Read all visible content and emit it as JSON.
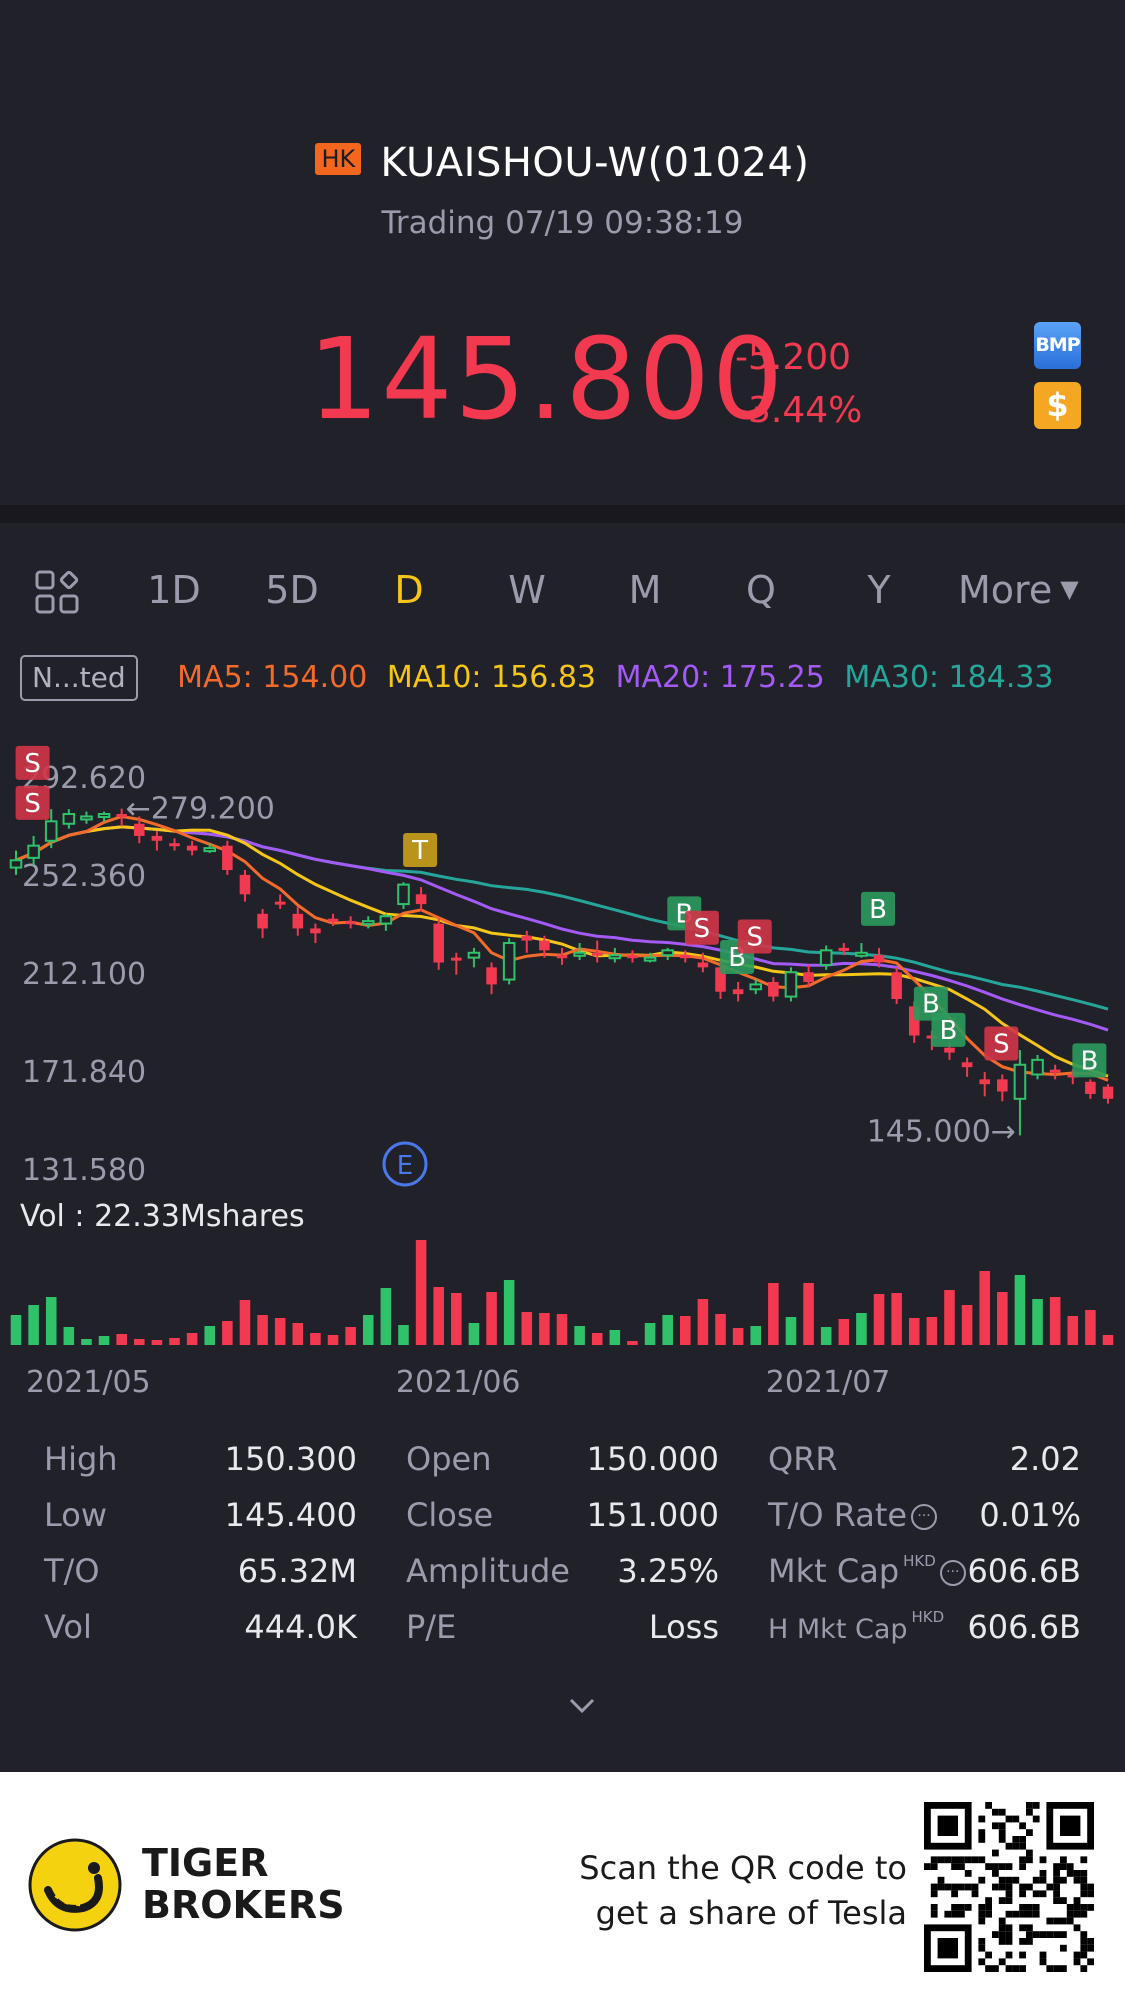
{
  "header": {
    "market_badge": "HK",
    "stock_name": "KUAISHOU-W(01024)",
    "status": "Trading 07/19 09:38:19",
    "price": "145.800",
    "change": "-5.200",
    "change_pct": "-3.44%",
    "icons": [
      "bmp-icon",
      "dollar-icon"
    ]
  },
  "tabs": {
    "items": [
      "1D",
      "5D",
      "D",
      "W",
      "M",
      "Q",
      "Y"
    ],
    "active": "D",
    "more_label": "More"
  },
  "ma": {
    "adjust_label": "N...ted",
    "ma5": "MA5: 154.00",
    "ma10": "MA10: 156.83",
    "ma20": "MA20: 175.25",
    "ma30": "MA30: 184.33"
  },
  "colors": {
    "up": "#2fc26b",
    "down": "#f2394f",
    "ma5": "#f26b2b",
    "ma10": "#f5c518",
    "ma20": "#a45af7",
    "ma30": "#26a69a",
    "active_tab": "#f5c518"
  },
  "chart_data": {
    "type": "candlestick",
    "y_tick_labels": [
      "292.620",
      "252.360",
      "212.100",
      "171.840",
      "131.580"
    ],
    "ylim": [
      131.58,
      292.62
    ],
    "x_tick_labels": [
      "2021/05",
      "2021/06",
      "2021/07"
    ],
    "high_marker": "279.200",
    "low_marker": "145.000",
    "volume_label": "Vol  : 22.33Mshares",
    "event_marker": "E",
    "trade_markers": [
      "S",
      "S",
      "T",
      "B",
      "S",
      "B",
      "S",
      "B",
      "B",
      "B",
      "S",
      "B"
    ],
    "candles": [
      {
        "o": 255,
        "c": 258,
        "h": 262,
        "l": 252
      },
      {
        "o": 259,
        "c": 264,
        "h": 268,
        "l": 256
      },
      {
        "o": 266,
        "c": 274,
        "h": 279,
        "l": 263
      },
      {
        "o": 273,
        "c": 277,
        "h": 279,
        "l": 271
      },
      {
        "o": 275,
        "c": 276,
        "h": 278,
        "l": 273
      },
      {
        "o": 276,
        "c": 277,
        "h": 278,
        "l": 274
      },
      {
        "o": 277,
        "c": 276,
        "h": 279.2,
        "l": 272
      },
      {
        "o": 273,
        "c": 268,
        "h": 276,
        "l": 265
      },
      {
        "o": 268,
        "c": 266,
        "h": 270,
        "l": 262
      },
      {
        "o": 265,
        "c": 264,
        "h": 267,
        "l": 262
      },
      {
        "o": 264,
        "c": 262,
        "h": 266,
        "l": 260
      },
      {
        "o": 262,
        "c": 263,
        "h": 265,
        "l": 261
      },
      {
        "o": 264,
        "c": 254,
        "h": 266,
        "l": 252
      },
      {
        "o": 252,
        "c": 244,
        "h": 254,
        "l": 241
      },
      {
        "o": 236,
        "c": 230,
        "h": 238,
        "l": 226
      },
      {
        "o": 241,
        "c": 240,
        "h": 244,
        "l": 238
      },
      {
        "o": 236,
        "c": 230,
        "h": 239,
        "l": 227
      },
      {
        "o": 230,
        "c": 228,
        "h": 232,
        "l": 224
      },
      {
        "o": 234,
        "c": 233,
        "h": 236,
        "l": 231
      },
      {
        "o": 233,
        "c": 232,
        "h": 235,
        "l": 230
      },
      {
        "o": 232,
        "c": 233,
        "h": 235,
        "l": 230
      },
      {
        "o": 232,
        "c": 235,
        "h": 236,
        "l": 229
      },
      {
        "o": 240,
        "c": 248,
        "h": 249,
        "l": 238
      },
      {
        "o": 244,
        "c": 240,
        "h": 247,
        "l": 237
      },
      {
        "o": 232,
        "c": 216,
        "h": 234,
        "l": 213
      },
      {
        "o": 218,
        "c": 217,
        "h": 220,
        "l": 211
      },
      {
        "o": 218,
        "c": 220,
        "h": 222,
        "l": 214
      },
      {
        "o": 214,
        "c": 207,
        "h": 216,
        "l": 203
      },
      {
        "o": 209,
        "c": 224,
        "h": 226,
        "l": 207
      },
      {
        "o": 227,
        "c": 225,
        "h": 229,
        "l": 220
      },
      {
        "o": 225,
        "c": 221,
        "h": 227,
        "l": 218
      },
      {
        "o": 219,
        "c": 218,
        "h": 222,
        "l": 215
      },
      {
        "o": 219,
        "c": 220,
        "h": 224,
        "l": 217
      },
      {
        "o": 220,
        "c": 219,
        "h": 225,
        "l": 216
      },
      {
        "o": 219,
        "c": 219,
        "h": 222,
        "l": 216
      },
      {
        "o": 219,
        "c": 218,
        "h": 221,
        "l": 216
      },
      {
        "o": 218,
        "c": 218,
        "h": 220,
        "l": 216
      },
      {
        "o": 219,
        "c": 221,
        "h": 222,
        "l": 217
      },
      {
        "o": 219,
        "c": 218,
        "h": 221,
        "l": 216
      },
      {
        "o": 216,
        "c": 214,
        "h": 220,
        "l": 212
      },
      {
        "o": 214,
        "c": 204,
        "h": 217,
        "l": 201
      },
      {
        "o": 205,
        "c": 203,
        "h": 208,
        "l": 200
      },
      {
        "o": 205,
        "c": 207,
        "h": 209,
        "l": 203
      },
      {
        "o": 208,
        "c": 202,
        "h": 210,
        "l": 200
      },
      {
        "o": 202,
        "c": 212,
        "h": 214,
        "l": 200
      },
      {
        "o": 212,
        "c": 208,
        "h": 215,
        "l": 206
      },
      {
        "o": 215,
        "c": 221,
        "h": 223,
        "l": 213
      },
      {
        "o": 222,
        "c": 221,
        "h": 224,
        "l": 219
      },
      {
        "o": 220,
        "c": 220,
        "h": 224,
        "l": 218
      },
      {
        "o": 219,
        "c": 216,
        "h": 222,
        "l": 214
      },
      {
        "o": 212,
        "c": 201,
        "h": 214,
        "l": 199
      },
      {
        "o": 198,
        "c": 186,
        "h": 200,
        "l": 183
      },
      {
        "o": 186,
        "c": 185,
        "h": 188,
        "l": 180
      },
      {
        "o": 181,
        "c": 179,
        "h": 183,
        "l": 176
      },
      {
        "o": 175,
        "c": 173,
        "h": 177,
        "l": 169
      },
      {
        "o": 168,
        "c": 166,
        "h": 171,
        "l": 161
      },
      {
        "o": 168,
        "c": 163,
        "h": 170,
        "l": 159
      },
      {
        "o": 160,
        "c": 174,
        "h": 180,
        "l": 145
      },
      {
        "o": 170,
        "c": 176,
        "h": 178,
        "l": 168
      },
      {
        "o": 172,
        "c": 171,
        "h": 174,
        "l": 168
      },
      {
        "o": 170,
        "c": 169,
        "h": 172,
        "l": 166
      },
      {
        "o": 167,
        "c": 162,
        "h": 168,
        "l": 160
      },
      {
        "o": 165,
        "c": 160,
        "h": 166,
        "l": 158
      }
    ],
    "volumes": [
      30,
      40,
      48,
      18,
      6,
      9,
      11,
      6,
      5,
      7,
      12,
      19,
      24,
      45,
      30,
      27,
      22,
      12,
      10,
      18,
      30,
      57,
      20,
      105,
      58,
      52,
      22,
      53,
      65,
      33,
      32,
      31,
      19,
      12,
      15,
      4,
      22,
      30,
      29,
      46,
      31,
      17,
      19,
      62,
      28,
      62,
      18,
      26,
      32,
      51,
      52,
      27,
      28,
      55,
      40,
      74,
      53,
      70,
      46,
      48,
      29,
      35,
      10
    ]
  },
  "stats": {
    "rows": [
      [
        {
          "label": "High",
          "value": "150.300"
        },
        {
          "label": "Open",
          "value": "150.000"
        },
        {
          "label": "QRR",
          "value": "2.02"
        }
      ],
      [
        {
          "label": "Low",
          "value": "145.400"
        },
        {
          "label": "Close",
          "value": "151.000"
        },
        {
          "label": "T/O Rate",
          "value": "0.01%"
        }
      ],
      [
        {
          "label": "T/O",
          "value": "65.32M"
        },
        {
          "label": "Amplitude",
          "value": "3.25%"
        },
        {
          "label": "Mkt Cap",
          "value": "606.6B"
        }
      ],
      [
        {
          "label": "Vol",
          "value": "444.0K"
        },
        {
          "label": "P/E",
          "value": "Loss"
        },
        {
          "label": "H Mkt Cap",
          "value": "606.6B"
        }
      ]
    ],
    "currency_tag": "HKD"
  },
  "footer": {
    "brand_line1": "TIGER",
    "brand_line2": "BROKERS",
    "scan_line1": "Scan the QR code to",
    "scan_line2": "get a share of Tesla"
  }
}
